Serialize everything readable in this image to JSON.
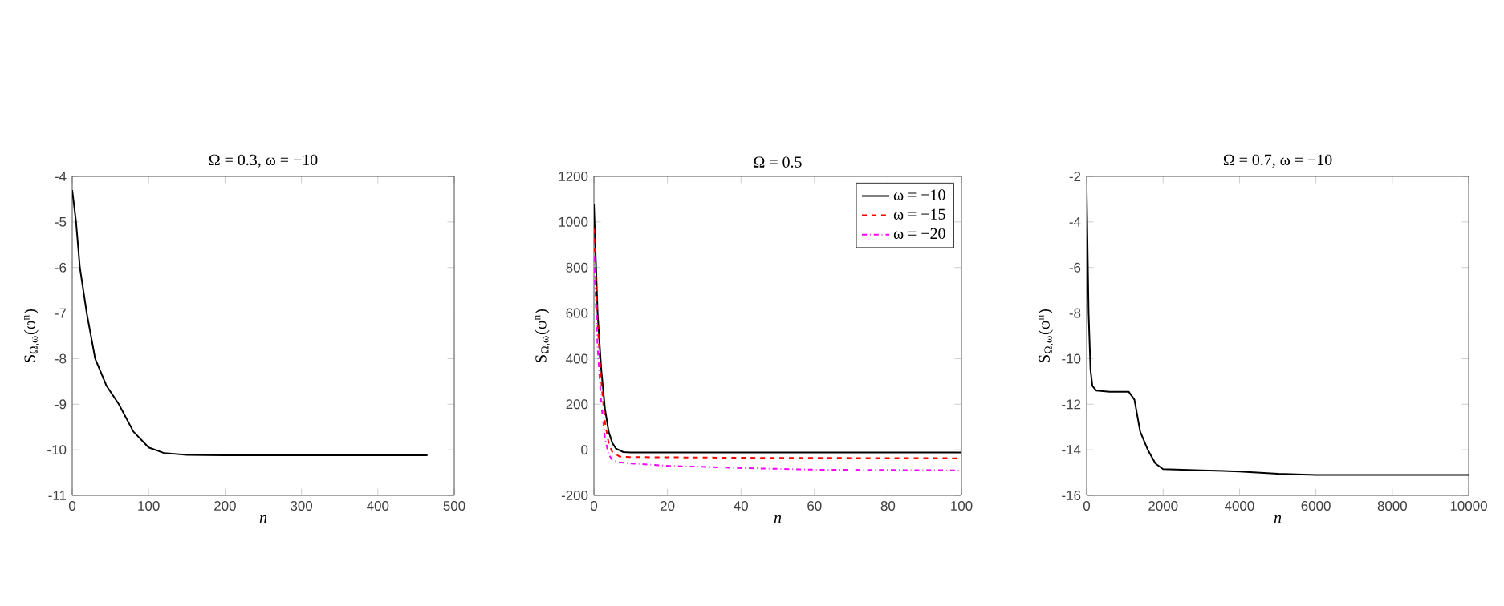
{
  "chart_data": [
    {
      "type": "line",
      "title": "Ω = 0.3,    ω = −10",
      "xlabel": "n",
      "ylabel": "S$_{Ω,ω}$(φ$^{n}$)",
      "xlim": [
        0,
        500
      ],
      "xticks": [
        0,
        100,
        200,
        300,
        400,
        500
      ],
      "ylim": [
        -11,
        -4
      ],
      "yticks": [
        -11,
        -10,
        -9,
        -8,
        -7,
        -6,
        -5,
        -4
      ],
      "series": [
        {
          "color": "#000000",
          "line_style": "solid",
          "x": [
            0,
            5,
            10,
            19,
            30,
            45,
            61,
            80,
            100,
            120,
            150,
            200,
            465
          ],
          "values": [
            -4.3,
            -5,
            -6,
            -7,
            -8,
            -8.6,
            -9,
            -9.6,
            -9.95,
            -10.07,
            -10.11,
            -10.12,
            -10.12
          ]
        }
      ]
    },
    {
      "type": "line",
      "title": "Ω = 0.5",
      "xlabel": "n",
      "ylabel": "S$_{Ω,ω}$(φ$^{n}$)",
      "xlim": [
        0,
        100
      ],
      "xticks": [
        0,
        20,
        40,
        60,
        80,
        100
      ],
      "ylim": [
        -200,
        1200
      ],
      "yticks": [
        -200,
        0,
        200,
        400,
        600,
        800,
        1000,
        1200
      ],
      "legend": "top right",
      "series": [
        {
          "name": "ω = −10",
          "color": "#000000",
          "line_style": "solid",
          "x": [
            0,
            1,
            2,
            3,
            4,
            5,
            6,
            8,
            10,
            100
          ],
          "values": [
            1080,
            600,
            350,
            180,
            80,
            30,
            5,
            -10,
            -12,
            -12
          ]
        },
        {
          "name": "ω = −15",
          "color": "#ff0000",
          "line_style": "dashed",
          "x": [
            0,
            1,
            2,
            3,
            4,
            5,
            7,
            10,
            40,
            100
          ],
          "values": [
            970,
            550,
            300,
            120,
            30,
            -10,
            -30,
            -32,
            -35,
            -37
          ]
        },
        {
          "name": "ω = −20",
          "color": "#ff00ff",
          "line_style": "dashdot",
          "x": [
            0,
            1,
            2,
            3,
            4,
            5,
            7,
            10,
            20,
            40,
            60,
            100
          ],
          "values": [
            850,
            450,
            200,
            50,
            -20,
            -45,
            -55,
            -60,
            -70,
            -80,
            -87,
            -90
          ]
        }
      ]
    },
    {
      "type": "line",
      "title": "Ω = 0.7,    ω = −10",
      "xlabel": "n",
      "ylabel": "S$_{Ω,ω}$(φ$^{n}$)",
      "xlim": [
        0,
        10000
      ],
      "xticks": [
        0,
        2000,
        4000,
        6000,
        8000,
        10000
      ],
      "ylim": [
        -16,
        -2
      ],
      "yticks": [
        -16,
        -14,
        -12,
        -10,
        -8,
        -6,
        -4,
        -2
      ],
      "series": [
        {
          "color": "#000000",
          "line_style": "solid",
          "x": [
            0,
            50,
            100,
            150,
            250,
            600,
            1100,
            1250,
            1400,
            1600,
            1800,
            2000,
            3000,
            4000,
            5000,
            6000,
            10000
          ],
          "values": [
            -2.7,
            -8,
            -10.5,
            -11.2,
            -11.4,
            -11.45,
            -11.45,
            -11.8,
            -13.2,
            -14,
            -14.6,
            -14.85,
            -14.9,
            -14.95,
            -15.05,
            -15.1,
            -15.1
          ]
        }
      ]
    }
  ]
}
